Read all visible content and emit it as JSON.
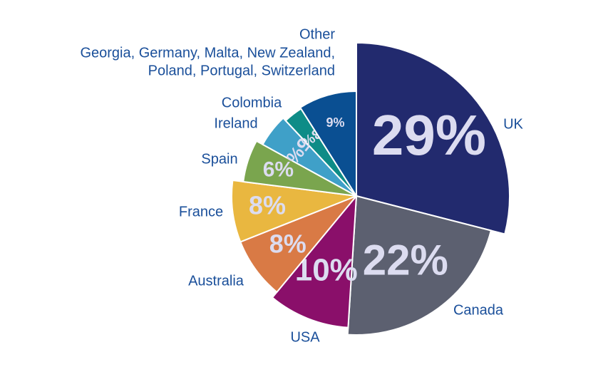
{
  "chart_data": {
    "type": "pie",
    "categories": [
      "UK",
      "Canada",
      "USA",
      "Australia",
      "France",
      "Spain",
      "Ireland",
      "Colombia",
      "Other"
    ],
    "values": [
      29,
      22,
      10,
      8,
      8,
      6,
      5,
      3,
      9
    ],
    "value_labels": [
      "29%",
      "22%",
      "10%",
      "8%",
      "8%",
      "6%",
      "5%",
      "3%",
      "9%"
    ],
    "colors": [
      "#222a6e",
      "#5c6070",
      "#8a0f6a",
      "#d97a45",
      "#e9b740",
      "#7aa54e",
      "#3fa0c8",
      "#0e8c87",
      "#0a4f92"
    ],
    "other_detail": [
      "Georgia, Germany, Malta, New Zealand,",
      "Poland, Portugal, Switzerland"
    ]
  }
}
